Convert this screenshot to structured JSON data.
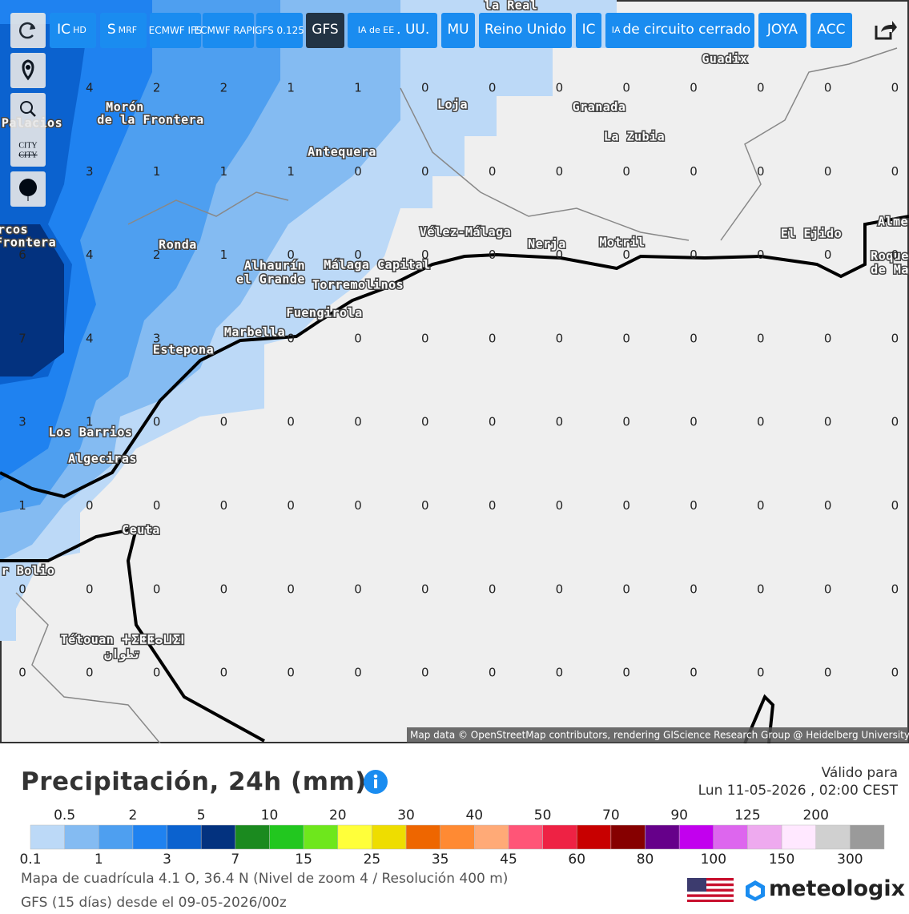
{
  "toolbar": {
    "buttons": [
      {
        "text": "IC",
        "small": "HD"
      },
      {
        "text": "S",
        "small": "MRF"
      },
      {
        "text": "ECMWF IFS"
      },
      {
        "text": "ECMWF RAPID"
      },
      {
        "text": "GFS 0.125"
      },
      {
        "text": "GFS"
      },
      {
        "small": "IA de EE",
        "text": ". UU."
      },
      {
        "text": "MU"
      },
      {
        "text": "Reino Unido"
      },
      {
        "text": "IC"
      },
      {
        "small": "IA",
        "text": "de circuito cerrado"
      },
      {
        "text": "JOYA"
      },
      {
        "text": "ACC"
      }
    ],
    "side": [
      "CITY",
      "CITY"
    ]
  },
  "map": {
    "places": [
      "Guadix",
      "Loja",
      "Granada",
      "La Zubia",
      "Morón",
      "de la Frontera",
      "Antequera",
      "Ronda",
      "Vélez-Málaga",
      "Nerja",
      "Motril",
      "El Ejido",
      "Alhaurín",
      "el Grande",
      "Málaga Capital",
      "Torremolinos",
      "Fuengirola",
      "Marbella",
      "Estepona",
      "Los Barrios",
      "Algeciras",
      "Ceuta",
      "Tétouan ⵜⵉⵟⵟⴰⵡⵉⵏ",
      "تطوان",
      "Alme",
      "Roque",
      "de Ma",
      "la Real",
      "rcos",
      "Frontera",
      "Palacios",
      "r Bolio"
    ],
    "grid": [
      [
        null,
        4,
        2,
        2,
        1,
        1,
        0,
        0,
        0,
        0,
        0,
        0,
        0,
        0
      ],
      [
        null,
        3,
        1,
        1,
        1,
        0,
        0,
        0,
        0,
        0,
        0,
        0,
        0,
        0
      ],
      [
        6,
        4,
        2,
        1,
        0,
        0,
        0,
        0,
        0,
        0,
        0,
        0,
        0,
        0
      ],
      [
        7,
        4,
        3,
        null,
        0,
        0,
        0,
        0,
        0,
        0,
        0,
        0,
        0,
        0
      ],
      [
        3,
        1,
        0,
        0,
        0,
        0,
        0,
        0,
        0,
        0,
        0,
        0,
        0,
        0
      ],
      [
        1,
        0,
        0,
        0,
        0,
        0,
        0,
        0,
        0,
        0,
        0,
        0,
        0,
        0
      ],
      [
        0,
        0,
        0,
        0,
        0,
        0,
        0,
        0,
        0,
        0,
        0,
        0,
        0,
        0
      ],
      [
        0,
        0,
        0,
        0,
        0,
        0,
        0,
        0,
        0,
        0,
        0,
        0,
        0,
        0
      ]
    ],
    "attribution": "Map data © OpenStreetMap contributors, rendering GIScience Research Group @ Heidelberg University"
  },
  "panel": {
    "title": "Precipitación, 24h (mm)",
    "valid_label": "Válido para",
    "valid_time": "Lun 11-05-2026 , 02:00 CEST",
    "legend": {
      "thresholds": [
        0.1,
        0.5,
        1,
        2,
        3,
        5,
        7,
        10,
        15,
        20,
        25,
        30,
        35,
        40,
        45,
        50,
        60,
        70,
        80,
        90,
        100,
        125,
        150,
        200,
        300
      ],
      "colors": [
        "#bcd9f7",
        "#84bbf2",
        "#4e9ff0",
        "#1f82f0",
        "#0b62cf",
        "#03327f",
        "#1b8a1f",
        "#22c71f",
        "#6ee71c",
        "#ffff3a",
        "#eedd00",
        "#ee6600",
        "#ff8a33",
        "#ffaa77",
        "#ff5577",
        "#ee2244",
        "#c80000",
        "#860000",
        "#66008a",
        "#c200ee",
        "#dd66ee",
        "#eeaaef",
        "#ffe8ff",
        "#d0d0d0",
        "#9a9a9a"
      ]
    },
    "line1": "Mapa de cuadrícula 4.1 O, 36.4 N (Nivel de zoom 4 / Resolución 400 m)",
    "line2": "GFS (15 días) desde el 09-05-2026/00z",
    "brand": "meteologix"
  }
}
